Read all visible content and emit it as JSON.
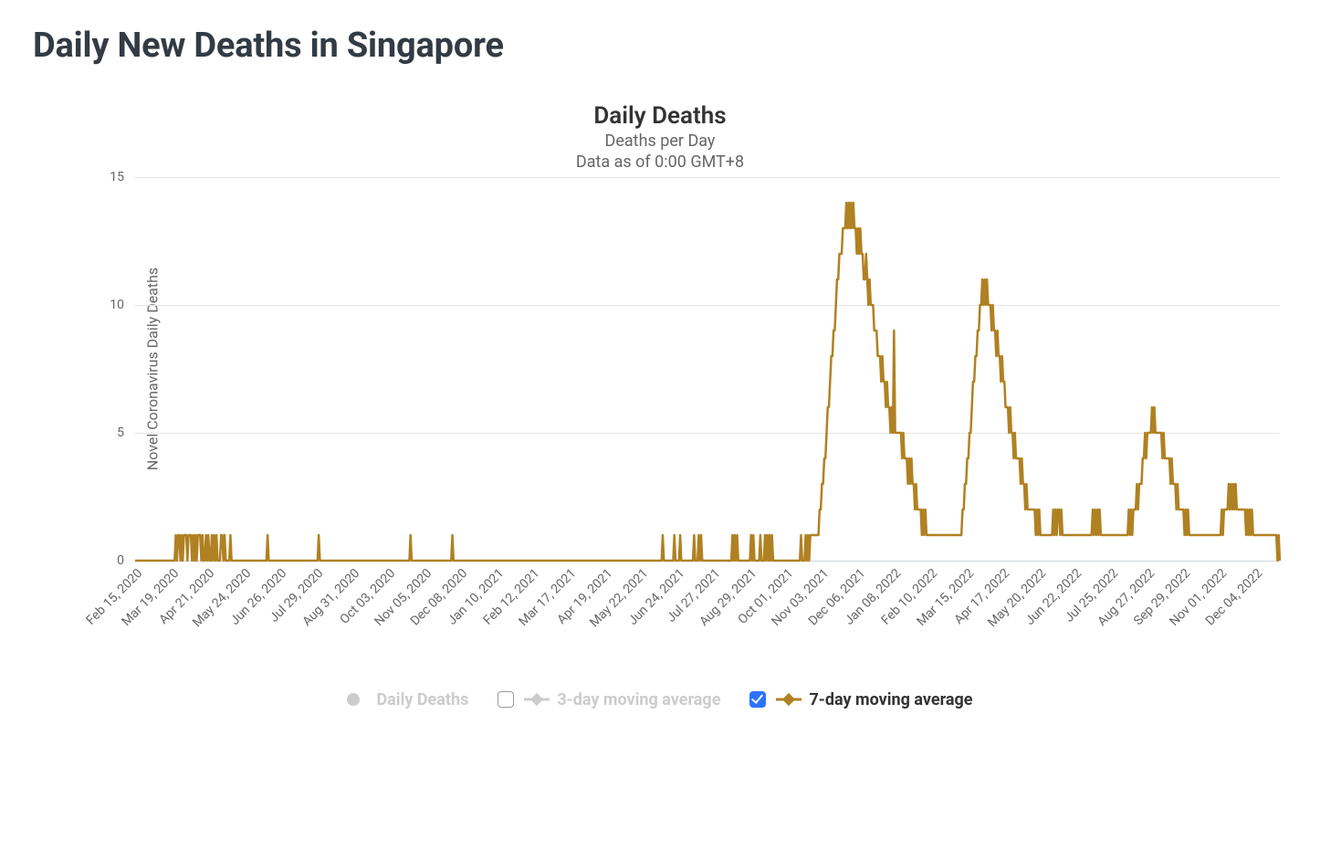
{
  "page_title": "Daily New Deaths in Singapore",
  "chart": {
    "type": "line",
    "title": "Daily Deaths",
    "subtitle1": "Deaths per Day",
    "subtitle2": "Data as of 0:00 GMT+8",
    "y_axis_title": "Novel Coronavirus Daily Deaths",
    "ylim": [
      0,
      15
    ],
    "ytick_step": 5,
    "y_ticks": [
      0,
      5,
      10,
      15
    ],
    "grid_color": "#e6e6e6",
    "axis_line_color": "#cfd6dd",
    "background_color": "#ffffff",
    "tick_font_color": "#666666",
    "tick_fontsize": 14,
    "title_font_color": "#333333",
    "title_fontsize": 26,
    "subtitle_fontsize": 18,
    "series_7day": {
      "color": "#b08122",
      "line_width": 2.5,
      "name": "7-day moving average",
      "visible": true,
      "x_start_date": "2020-02-15",
      "x_end_date": "2022-12-25",
      "values": [
        0,
        0,
        0,
        0,
        0,
        0,
        0,
        0,
        0,
        0,
        0,
        0,
        0,
        0,
        0,
        0,
        0,
        0,
        0,
        0,
        0,
        0,
        0,
        0,
        0,
        0,
        0,
        0,
        0,
        0,
        0,
        0,
        0,
        0,
        0,
        1,
        0,
        1,
        1,
        0,
        1,
        0,
        1,
        1,
        1,
        0,
        1,
        1,
        1,
        0,
        1,
        0,
        1,
        0,
        1,
        1,
        1,
        0,
        1,
        0,
        0,
        1,
        0,
        1,
        0,
        0,
        1,
        0,
        1,
        0,
        1,
        0,
        0,
        0,
        1,
        1,
        0,
        1,
        0,
        0,
        0,
        0,
        1,
        0,
        0,
        0,
        0,
        0,
        0,
        0,
        0,
        0,
        0,
        0,
        0,
        0,
        0,
        0,
        0,
        0,
        0,
        0,
        0,
        0,
        0,
        0,
        0,
        0,
        0,
        0,
        0,
        0,
        0,
        0,
        1,
        0,
        0,
        0,
        0,
        0,
        0,
        0,
        0,
        0,
        0,
        0,
        0,
        0,
        0,
        0,
        0,
        0,
        0,
        0,
        0,
        0,
        0,
        0,
        0,
        0,
        0,
        0,
        0,
        0,
        0,
        0,
        0,
        0,
        0,
        0,
        0,
        0,
        0,
        0,
        0,
        0,
        0,
        0,
        1,
        0,
        0,
        0,
        0,
        0,
        0,
        0,
        0,
        0,
        0,
        0,
        0,
        0,
        0,
        0,
        0,
        0,
        0,
        0,
        0,
        0,
        0,
        0,
        0,
        0,
        0,
        0,
        0,
        0,
        0,
        0,
        0,
        0,
        0,
        0,
        0,
        0,
        0,
        0,
        0,
        0,
        0,
        0,
        0,
        0,
        0,
        0,
        0,
        0,
        0,
        0,
        0,
        0,
        0,
        0,
        0,
        0,
        0,
        0,
        0,
        0,
        0,
        0,
        0,
        0,
        0,
        0,
        0,
        0,
        0,
        0,
        0,
        0,
        0,
        0,
        0,
        0,
        0,
        1,
        0,
        0,
        0,
        0,
        0,
        0,
        0,
        0,
        0,
        0,
        0,
        0,
        0,
        0,
        0,
        0,
        0,
        0,
        0,
        0,
        0,
        0,
        0,
        0,
        0,
        0,
        0,
        0,
        0,
        0,
        0,
        0,
        0,
        0,
        0,
        1,
        0,
        0,
        0,
        0,
        0,
        0,
        0,
        0,
        0,
        0,
        0,
        0,
        0,
        0,
        0,
        0,
        0,
        0,
        0,
        0,
        0,
        0,
        0,
        0,
        0,
        0,
        0,
        0,
        0,
        0,
        0,
        0,
        0,
        0,
        0,
        0,
        0,
        0,
        0,
        0,
        0,
        0,
        0,
        0,
        0,
        0,
        0,
        0,
        0,
        0,
        0,
        0,
        0,
        0,
        0,
        0,
        0,
        0,
        0,
        0,
        0,
        0,
        0,
        0,
        0,
        0,
        0,
        0,
        0,
        0,
        0,
        0,
        0,
        0,
        0,
        0,
        0,
        0,
        0,
        0,
        0,
        0,
        0,
        0,
        0,
        0,
        0,
        0,
        0,
        0,
        0,
        0,
        0,
        0,
        0,
        0,
        0,
        0,
        0,
        0,
        0,
        0,
        0,
        0,
        0,
        0,
        0,
        0,
        0,
        0,
        0,
        0,
        0,
        0,
        0,
        0,
        0,
        0,
        0,
        0,
        0,
        0,
        0,
        0,
        0,
        0,
        0,
        0,
        0,
        0,
        0,
        0,
        0,
        0,
        0,
        0,
        0,
        0,
        0,
        0,
        0,
        0,
        0,
        0,
        0,
        0,
        0,
        0,
        0,
        0,
        0,
        0,
        0,
        0,
        0,
        0,
        0,
        0,
        0,
        0,
        0,
        0,
        0,
        0,
        0,
        0,
        0,
        0,
        0,
        0,
        0,
        0,
        0,
        0,
        0,
        0,
        0,
        0,
        0,
        0,
        1,
        0,
        0,
        0,
        0,
        0,
        0,
        0,
        0,
        0,
        1,
        0,
        0,
        0,
        0,
        1,
        0,
        0,
        0,
        0,
        0,
        0,
        0,
        0,
        0,
        0,
        0,
        1,
        0,
        0,
        0,
        1,
        0,
        1,
        0,
        0,
        0,
        0,
        0,
        0,
        0,
        0,
        0,
        0,
        0,
        0,
        0,
        0,
        0,
        0,
        0,
        0,
        0,
        0,
        0,
        0,
        0,
        0,
        0,
        0,
        1,
        0,
        1,
        0,
        1,
        0,
        0,
        0,
        0,
        0,
        0,
        0,
        0,
        0,
        0,
        0,
        1,
        0,
        1,
        0,
        0,
        0,
        0,
        0,
        1,
        0,
        0,
        0,
        1,
        0,
        1,
        0,
        1,
        0,
        1,
        0,
        0,
        0,
        0,
        0,
        0,
        0,
        0,
        0,
        0,
        0,
        0,
        0,
        0,
        0,
        0,
        0,
        0,
        0,
        0,
        0,
        0,
        0,
        0,
        1,
        0,
        0,
        0,
        1,
        0,
        1,
        0,
        1,
        1,
        1,
        1,
        1,
        1,
        1,
        1,
        2,
        2,
        3,
        3,
        4,
        4,
        5,
        6,
        6,
        7,
        8,
        8,
        9,
        9,
        10,
        11,
        11,
        12,
        12,
        12,
        13,
        13,
        13,
        14,
        13,
        14,
        13,
        14,
        13,
        14,
        13,
        13,
        12,
        13,
        12,
        13,
        12,
        12,
        11,
        11,
        12,
        11,
        10,
        11,
        10,
        10,
        10,
        9,
        9,
        9,
        8,
        8,
        8,
        7,
        8,
        7,
        7,
        6,
        7,
        6,
        6,
        5,
        6,
        5,
        9,
        5,
        5,
        5,
        5,
        5,
        5,
        4,
        5,
        4,
        4,
        4,
        3,
        4,
        3,
        4,
        3,
        3,
        2,
        3,
        2,
        2,
        2,
        2,
        1,
        2,
        1,
        2,
        1,
        1,
        1,
        1,
        1,
        1,
        1,
        1,
        1,
        1,
        1,
        1,
        1,
        1,
        1,
        1,
        1,
        1,
        1,
        1,
        1,
        1,
        1,
        1,
        1,
        1,
        1,
        1,
        1,
        1,
        1,
        2,
        2,
        3,
        3,
        4,
        4,
        5,
        5,
        6,
        7,
        7,
        8,
        8,
        9,
        9,
        10,
        10,
        11,
        10,
        11,
        10,
        11,
        10,
        10,
        10,
        9,
        10,
        9,
        9,
        8,
        9,
        8,
        8,
        7,
        8,
        7,
        7,
        6,
        6,
        6,
        5,
        6,
        5,
        5,
        4,
        5,
        4,
        4,
        4,
        4,
        3,
        4,
        3,
        3,
        2,
        3,
        2,
        2,
        2,
        2,
        2,
        2,
        2,
        1,
        2,
        1,
        2,
        1,
        1,
        1,
        1,
        1,
        1,
        1,
        1,
        1,
        1,
        1,
        2,
        1,
        2,
        1,
        2,
        2,
        1,
        2,
        1,
        1,
        1,
        1,
        1,
        1,
        1,
        1,
        1,
        1,
        1,
        1,
        1,
        1,
        1,
        1,
        1,
        1,
        1,
        1,
        1,
        1,
        1,
        1,
        1,
        1,
        2,
        1,
        2,
        1,
        2,
        1,
        2,
        1,
        1,
        1,
        1,
        1,
        1,
        1,
        1,
        1,
        1,
        1,
        1,
        1,
        1,
        1,
        1,
        1,
        1,
        1,
        1,
        1,
        1,
        1,
        1,
        2,
        1,
        2,
        1,
        2,
        2,
        2,
        3,
        2,
        3,
        3,
        3,
        4,
        4,
        5,
        4,
        5,
        5,
        5,
        5,
        6,
        5,
        6,
        5,
        5,
        5,
        5,
        5,
        5,
        4,
        5,
        4,
        4,
        4,
        4,
        4,
        3,
        4,
        3,
        3,
        3,
        2,
        3,
        2,
        2,
        2,
        2,
        2,
        1,
        2,
        1,
        2,
        1,
        1,
        1,
        1,
        1,
        1,
        1,
        1,
        1,
        1,
        1,
        1,
        1,
        1,
        1,
        1,
        1,
        1,
        1,
        1,
        1,
        1,
        1,
        1,
        1,
        1,
        1,
        1,
        2,
        1,
        2,
        2,
        2,
        2,
        3,
        2,
        3,
        2,
        3,
        2,
        3,
        2,
        2,
        2,
        2,
        2,
        2,
        2,
        2,
        1,
        2,
        1,
        2,
        1,
        2,
        1,
        1,
        1,
        1,
        1,
        1,
        1,
        1,
        1,
        1,
        1,
        1,
        1,
        1,
        1,
        1,
        1,
        1,
        1,
        1,
        1,
        0,
        1,
        0
      ]
    },
    "series_daily": {
      "name": "Daily Deaths",
      "visible": false,
      "color": "#cccccc"
    },
    "series_3day": {
      "name": "3-day moving average",
      "visible": false,
      "color": "#cccccc"
    },
    "x_tick_labels": [
      "Feb 15, 2020",
      "Mar 19, 2020",
      "Apr 21, 2020",
      "May 24, 2020",
      "Jun 26, 2020",
      "Jul 29, 2020",
      "Aug 31, 2020",
      "Oct 03, 2020",
      "Nov 05, 2020",
      "Dec 08, 2020",
      "Jan 10, 2021",
      "Feb 12, 2021",
      "Mar 17, 2021",
      "Apr 19, 2021",
      "May 22, 2021",
      "Jun 24, 2021",
      "Jul 27, 2021",
      "Aug 29, 2021",
      "Oct 01, 2021",
      "Nov 03, 2021",
      "Dec 06, 2021",
      "Jan 08, 2022",
      "Feb 10, 2022",
      "Mar 15, 2022",
      "Apr 17, 2022",
      "May 20, 2022",
      "Jun 22, 2022",
      "Jul 25, 2022",
      "Aug 27, 2022",
      "Sep 29, 2022",
      "Nov 01, 2022",
      "Dec 04, 2022"
    ]
  },
  "legend": {
    "items": [
      {
        "key": "daily",
        "label": "Daily Deaths",
        "color": "#cccccc",
        "enabled": false,
        "symbol": "dot",
        "has_checkbox": false
      },
      {
        "key": "3day",
        "label": "3-day moving average",
        "color": "#cccccc",
        "enabled": false,
        "symbol": "linedot",
        "has_checkbox": true,
        "checked": false
      },
      {
        "key": "7day",
        "label": "7-day moving average",
        "color": "#b08122",
        "enabled": true,
        "symbol": "linedot",
        "has_checkbox": true,
        "checked": true
      }
    ]
  }
}
